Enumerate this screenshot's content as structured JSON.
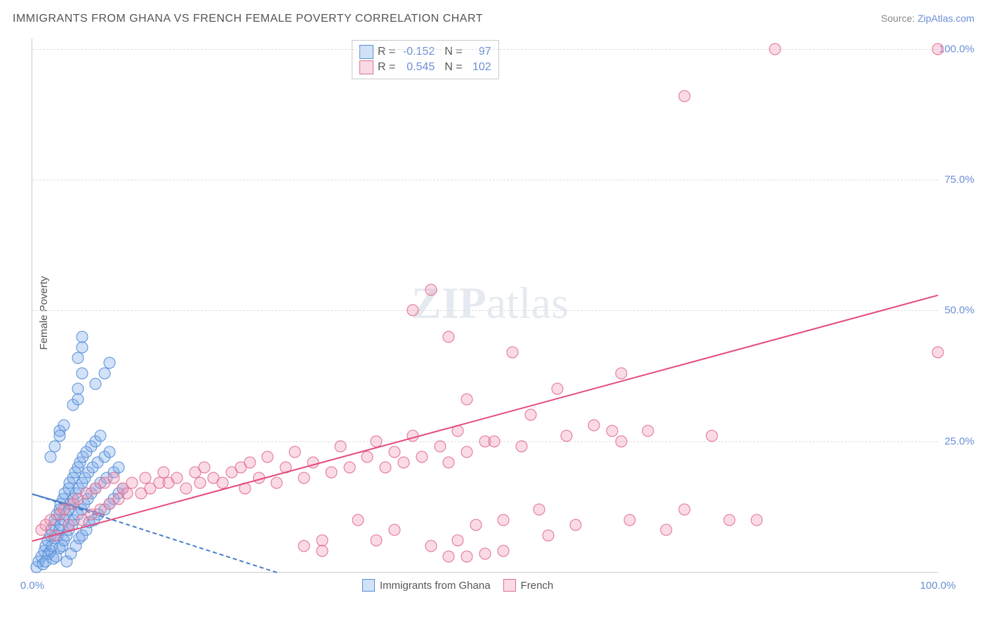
{
  "title": "IMMIGRANTS FROM GHANA VS FRENCH FEMALE POVERTY CORRELATION CHART",
  "source_label": "Source:",
  "source_name": "ZipAtlas.com",
  "ylabel": "Female Poverty",
  "watermark": {
    "bold": "ZIP",
    "rest": "atlas"
  },
  "chart": {
    "type": "scatter",
    "xlim": [
      0,
      100
    ],
    "ylim": [
      0,
      102
    ],
    "yticks": [
      {
        "v": 25,
        "label": "25.0%"
      },
      {
        "v": 50,
        "label": "50.0%"
      },
      {
        "v": 75,
        "label": "75.0%"
      },
      {
        "v": 100,
        "label": "100.0%"
      }
    ],
    "xticks": [
      {
        "v": 0,
        "label": "0.0%"
      },
      {
        "v": 100,
        "label": "100.0%"
      }
    ],
    "background_color": "#ffffff",
    "grid_color": "#dddddd",
    "axis_color": "#cccccc",
    "tick_color": "#6b8fd4",
    "label_color": "#555555",
    "marker_radius": 8.5,
    "marker_stroke_width": 1.5,
    "series": [
      {
        "name": "Immigrants from Ghana",
        "fill": "rgba(120,170,235,0.35)",
        "stroke": "#5a8fd6",
        "r": -0.152,
        "n": 97,
        "trend": {
          "x1": 0,
          "y1": 15,
          "x2": 27,
          "y2": 0,
          "color": "#4a7ec9",
          "dashed": true
        },
        "trend_solid": {
          "x1": 0,
          "y1": 15,
          "x2": 8,
          "y2": 11,
          "color": "#4a7ec9",
          "dashed": false
        },
        "data": [
          [
            0.5,
            1
          ],
          [
            0.7,
            2
          ],
          [
            1,
            3
          ],
          [
            1.2,
            1.5
          ],
          [
            1.3,
            4
          ],
          [
            1.5,
            5
          ],
          [
            1.5,
            2
          ],
          [
            1.7,
            6
          ],
          [
            1.8,
            3.5
          ],
          [
            2,
            7
          ],
          [
            2,
            4
          ],
          [
            2.1,
            8
          ],
          [
            2.2,
            5
          ],
          [
            2.3,
            2.5
          ],
          [
            2.4,
            9
          ],
          [
            2.5,
            10
          ],
          [
            2.5,
            6.5
          ],
          [
            2.6,
            3
          ],
          [
            2.7,
            11
          ],
          [
            2.8,
            7
          ],
          [
            3,
            12
          ],
          [
            3,
            8
          ],
          [
            3,
            4.5
          ],
          [
            3.1,
            13
          ],
          [
            3.2,
            9
          ],
          [
            3.3,
            5
          ],
          [
            3.4,
            14
          ],
          [
            3.5,
            10
          ],
          [
            3.5,
            6
          ],
          [
            3.6,
            15
          ],
          [
            3.7,
            11
          ],
          [
            3.8,
            2
          ],
          [
            3.8,
            7
          ],
          [
            4,
            16
          ],
          [
            4,
            12
          ],
          [
            4,
            8
          ],
          [
            4.1,
            17
          ],
          [
            4.2,
            13
          ],
          [
            4.3,
            3.5
          ],
          [
            4.4,
            9
          ],
          [
            4.5,
            18
          ],
          [
            4.5,
            14
          ],
          [
            4.6,
            10
          ],
          [
            4.7,
            19
          ],
          [
            4.8,
            15
          ],
          [
            4.8,
            5
          ],
          [
            5,
            20
          ],
          [
            5,
            11
          ],
          [
            5.1,
            16
          ],
          [
            5.2,
            6.5
          ],
          [
            5.3,
            21
          ],
          [
            5.4,
            12
          ],
          [
            5.5,
            17
          ],
          [
            5.5,
            7
          ],
          [
            5.6,
            22
          ],
          [
            5.7,
            13
          ],
          [
            5.8,
            18
          ],
          [
            6,
            8
          ],
          [
            6,
            23
          ],
          [
            6.1,
            14
          ],
          [
            6.2,
            19
          ],
          [
            6.3,
            9.5
          ],
          [
            6.5,
            24
          ],
          [
            6.5,
            15
          ],
          [
            6.7,
            20
          ],
          [
            6.8,
            10
          ],
          [
            7,
            25
          ],
          [
            7,
            16
          ],
          [
            7.2,
            21
          ],
          [
            7.3,
            11
          ],
          [
            7.5,
            26
          ],
          [
            7.5,
            17
          ],
          [
            8,
            22
          ],
          [
            8,
            12
          ],
          [
            8.2,
            18
          ],
          [
            8.5,
            23
          ],
          [
            8.5,
            13
          ],
          [
            9,
            19
          ],
          [
            9,
            14
          ],
          [
            9.5,
            20
          ],
          [
            9.5,
            15
          ],
          [
            10,
            16
          ],
          [
            4.5,
            32
          ],
          [
            5,
            33
          ],
          [
            5,
            35
          ],
          [
            5.5,
            38
          ],
          [
            5,
            41
          ],
          [
            5.5,
            43
          ],
          [
            5.5,
            45
          ],
          [
            3,
            27
          ],
          [
            3.5,
            28
          ],
          [
            7,
            36
          ],
          [
            8,
            38
          ],
          [
            8.5,
            40
          ],
          [
            2,
            22
          ],
          [
            2.5,
            24
          ],
          [
            3,
            26
          ]
        ]
      },
      {
        "name": "French",
        "fill": "rgba(240,150,180,0.35)",
        "stroke": "#e0708f",
        "r": 0.545,
        "n": 102,
        "trend": {
          "x1": 0,
          "y1": 6,
          "x2": 100,
          "y2": 53,
          "color": "#e54b7a",
          "dashed": false
        },
        "data": [
          [
            1,
            8
          ],
          [
            1.5,
            9
          ],
          [
            2,
            10
          ],
          [
            2.5,
            7
          ],
          [
            3,
            11
          ],
          [
            3.5,
            12
          ],
          [
            4,
            9
          ],
          [
            4.5,
            13
          ],
          [
            5,
            14
          ],
          [
            5.5,
            10
          ],
          [
            6,
            15
          ],
          [
            6.5,
            11
          ],
          [
            7,
            16
          ],
          [
            7.5,
            12
          ],
          [
            8,
            17
          ],
          [
            8.5,
            13
          ],
          [
            9,
            18
          ],
          [
            9.5,
            14
          ],
          [
            10,
            16
          ],
          [
            10.5,
            15
          ],
          [
            11,
            17
          ],
          [
            12,
            15
          ],
          [
            12.5,
            18
          ],
          [
            13,
            16
          ],
          [
            14,
            17
          ],
          [
            14.5,
            19
          ],
          [
            15,
            17
          ],
          [
            16,
            18
          ],
          [
            17,
            16
          ],
          [
            18,
            19
          ],
          [
            18.5,
            17
          ],
          [
            19,
            20
          ],
          [
            20,
            18
          ],
          [
            21,
            17
          ],
          [
            22,
            19
          ],
          [
            23,
            20
          ],
          [
            23.5,
            16
          ],
          [
            24,
            21
          ],
          [
            25,
            18
          ],
          [
            26,
            22
          ],
          [
            27,
            17
          ],
          [
            28,
            20
          ],
          [
            29,
            23
          ],
          [
            30,
            18
          ],
          [
            31,
            21
          ],
          [
            32,
            6
          ],
          [
            33,
            19
          ],
          [
            34,
            24
          ],
          [
            35,
            20
          ],
          [
            36,
            10
          ],
          [
            37,
            22
          ],
          [
            38,
            25
          ],
          [
            38,
            6
          ],
          [
            39,
            20
          ],
          [
            40,
            23
          ],
          [
            40,
            8
          ],
          [
            41,
            21
          ],
          [
            42,
            26
          ],
          [
            43,
            22
          ],
          [
            44,
            5
          ],
          [
            44,
            54
          ],
          [
            45,
            24
          ],
          [
            46,
            21
          ],
          [
            47,
            27
          ],
          [
            48,
            23
          ],
          [
            49,
            9
          ],
          [
            42,
            50
          ],
          [
            46,
            45
          ],
          [
            47,
            6
          ],
          [
            48,
            33
          ],
          [
            50,
            25
          ],
          [
            51,
            25
          ],
          [
            52,
            10
          ],
          [
            53,
            42
          ],
          [
            54,
            24
          ],
          [
            55,
            30
          ],
          [
            56,
            12
          ],
          [
            57,
            7
          ],
          [
            58,
            35
          ],
          [
            59,
            26
          ],
          [
            60,
            9
          ],
          [
            62,
            28
          ],
          [
            64,
            27
          ],
          [
            65,
            25
          ],
          [
            66,
            10
          ],
          [
            68,
            27
          ],
          [
            70,
            8
          ],
          [
            72,
            12
          ],
          [
            75,
            26
          ],
          [
            77,
            10
          ],
          [
            80,
            10
          ],
          [
            65,
            38
          ],
          [
            82,
            100
          ],
          [
            100,
            42
          ],
          [
            72,
            91
          ],
          [
            100,
            100
          ],
          [
            46,
            3
          ],
          [
            48,
            3
          ],
          [
            30,
            5
          ],
          [
            32,
            4
          ],
          [
            50,
            3.5
          ],
          [
            52,
            4
          ]
        ]
      }
    ]
  },
  "stats_legend": [
    {
      "r": "-0.152",
      "n": "97",
      "swatch_fill": "rgba(120,170,235,0.35)",
      "swatch_stroke": "#5a8fd6"
    },
    {
      "r": "0.545",
      "n": "102",
      "swatch_fill": "rgba(240,150,180,0.35)",
      "swatch_stroke": "#e0708f"
    }
  ],
  "bottom_legend": [
    {
      "label": "Immigrants from Ghana",
      "swatch_fill": "rgba(120,170,235,0.35)",
      "swatch_stroke": "#5a8fd6"
    },
    {
      "label": "French",
      "swatch_fill": "rgba(240,150,180,0.35)",
      "swatch_stroke": "#e0708f"
    }
  ]
}
